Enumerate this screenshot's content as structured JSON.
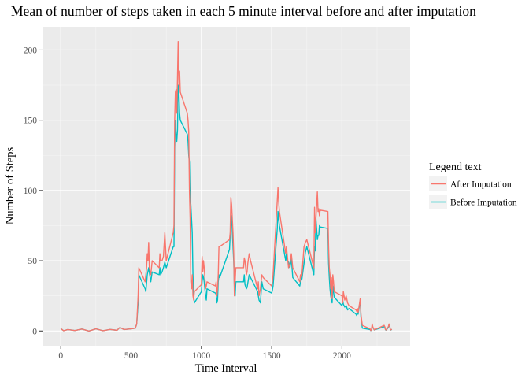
{
  "chart_data": {
    "type": "line",
    "title": "Mean of number of steps taken in each 5 minute interval before and after imputation",
    "xlabel": "Time Interval",
    "ylabel": "Number of Steps",
    "xlim": [
      -130,
      2485
    ],
    "ylim": [
      -10.5,
      216.5
    ],
    "x_ticks": [
      0,
      500,
      1000,
      1500,
      2000
    ],
    "y_ticks": [
      0,
      50,
      100,
      150,
      200
    ],
    "grid": true,
    "legend": {
      "title": "Legend text",
      "position": "right",
      "entries": [
        "After Imputation",
        "Before Imputation"
      ]
    },
    "series": [
      {
        "name": "Before Imputation",
        "color": "#00BFC4",
        "points": [
          [
            0,
            1.7
          ],
          [
            20,
            0.2
          ],
          [
            50,
            1
          ],
          [
            100,
            0.3
          ],
          [
            150,
            1.4
          ],
          [
            200,
            0
          ],
          [
            250,
            1.5
          ],
          [
            300,
            0.2
          ],
          [
            350,
            1.1
          ],
          [
            400,
            0.5
          ],
          [
            420,
            2.5
          ],
          [
            450,
            1
          ],
          [
            500,
            1.5
          ],
          [
            530,
            2
          ],
          [
            540,
            5
          ],
          [
            550,
            20
          ],
          [
            555,
            40
          ],
          [
            600,
            30
          ],
          [
            605,
            28
          ],
          [
            615,
            40
          ],
          [
            625,
            45
          ],
          [
            640,
            35
          ],
          [
            650,
            42
          ],
          [
            700,
            40
          ],
          [
            705,
            45
          ],
          [
            710,
            40
          ],
          [
            720,
            42
          ],
          [
            730,
            45
          ],
          [
            740,
            49
          ],
          [
            750,
            45
          ],
          [
            800,
            60
          ],
          [
            805,
            60
          ],
          [
            810,
            130
          ],
          [
            815,
            150
          ],
          [
            820,
            140
          ],
          [
            825,
            135
          ],
          [
            830,
            143
          ],
          [
            835,
            175
          ],
          [
            840,
            170
          ],
          [
            845,
            155
          ],
          [
            850,
            150
          ],
          [
            900,
            140
          ],
          [
            905,
            135
          ],
          [
            910,
            125
          ],
          [
            915,
            120
          ],
          [
            920,
            95
          ],
          [
            925,
            90
          ],
          [
            930,
            80
          ],
          [
            935,
            70
          ],
          [
            940,
            40
          ],
          [
            945,
            25
          ],
          [
            950,
            20
          ],
          [
            1000,
            28
          ],
          [
            1005,
            35
          ],
          [
            1010,
            40
          ],
          [
            1015,
            38
          ],
          [
            1020,
            35
          ],
          [
            1030,
            25
          ],
          [
            1035,
            22
          ],
          [
            1040,
            30
          ],
          [
            1100,
            27
          ],
          [
            1105,
            26
          ],
          [
            1110,
            20
          ],
          [
            1115,
            22
          ],
          [
            1120,
            35
          ],
          [
            1125,
            40
          ],
          [
            1130,
            38
          ],
          [
            1200,
            58
          ],
          [
            1205,
            68
          ],
          [
            1210,
            75
          ],
          [
            1215,
            82
          ],
          [
            1225,
            60
          ],
          [
            1230,
            50
          ],
          [
            1235,
            30
          ],
          [
            1240,
            25
          ],
          [
            1245,
            35
          ],
          [
            1300,
            35
          ],
          [
            1305,
            40
          ],
          [
            1310,
            33
          ],
          [
            1320,
            30
          ],
          [
            1325,
            31
          ],
          [
            1330,
            34
          ],
          [
            1340,
            40
          ],
          [
            1350,
            38
          ],
          [
            1400,
            28
          ],
          [
            1405,
            25
          ],
          [
            1410,
            22
          ],
          [
            1420,
            20
          ],
          [
            1430,
            35
          ],
          [
            1440,
            30
          ],
          [
            1500,
            27
          ],
          [
            1505,
            29
          ],
          [
            1510,
            32
          ],
          [
            1540,
            73
          ],
          [
            1545,
            85
          ],
          [
            1550,
            80
          ],
          [
            1555,
            75
          ],
          [
            1600,
            50
          ],
          [
            1605,
            55
          ],
          [
            1610,
            50
          ],
          [
            1620,
            49
          ],
          [
            1630,
            45
          ],
          [
            1640,
            52
          ],
          [
            1650,
            38
          ],
          [
            1700,
            32
          ],
          [
            1705,
            35
          ],
          [
            1710,
            36
          ],
          [
            1715,
            37
          ],
          [
            1730,
            48
          ],
          [
            1740,
            56
          ],
          [
            1750,
            60
          ],
          [
            1800,
            40
          ],
          [
            1805,
            60
          ],
          [
            1810,
            57
          ],
          [
            1815,
            80
          ],
          [
            1825,
            65
          ],
          [
            1830,
            68
          ],
          [
            1835,
            68
          ],
          [
            1840,
            75
          ],
          [
            1845,
            74
          ],
          [
            1900,
            73
          ],
          [
            1905,
            48
          ],
          [
            1910,
            38
          ],
          [
            1915,
            30
          ],
          [
            1920,
            25
          ],
          [
            1925,
            22
          ],
          [
            1930,
            20
          ],
          [
            1935,
            32
          ],
          [
            1940,
            28
          ],
          [
            1945,
            24
          ],
          [
            2000,
            18
          ],
          [
            2005,
            22
          ],
          [
            2010,
            19
          ],
          [
            2020,
            17
          ],
          [
            2030,
            18
          ],
          [
            2040,
            15
          ],
          [
            2050,
            16
          ],
          [
            2100,
            12
          ],
          [
            2105,
            11
          ],
          [
            2110,
            13
          ],
          [
            2115,
            12
          ],
          [
            2130,
            22
          ],
          [
            2135,
            10
          ],
          [
            2140,
            6
          ],
          [
            2145,
            2
          ],
          [
            2200,
            1
          ],
          [
            2205,
            0.2
          ],
          [
            2210,
            0.9
          ],
          [
            2215,
            3
          ],
          [
            2220,
            2.5
          ],
          [
            2230,
            0.7
          ],
          [
            2300,
            3
          ],
          [
            2305,
            2.8
          ],
          [
            2310,
            0.8
          ],
          [
            2315,
            0.6
          ],
          [
            2330,
            2.5
          ],
          [
            2335,
            4.5
          ],
          [
            2340,
            3.3
          ],
          [
            2345,
            0.6
          ],
          [
            2355,
            1.1
          ]
        ]
      },
      {
        "name": "After Imputation",
        "color": "#F8766D",
        "points": [
          [
            0,
            1.7
          ],
          [
            20,
            0.2
          ],
          [
            50,
            1
          ],
          [
            100,
            0.3
          ],
          [
            150,
            1.4
          ],
          [
            200,
            0
          ],
          [
            250,
            1.5
          ],
          [
            300,
            0.2
          ],
          [
            350,
            1.1
          ],
          [
            400,
            0.5
          ],
          [
            420,
            2.5
          ],
          [
            450,
            1
          ],
          [
            500,
            1.5
          ],
          [
            530,
            2
          ],
          [
            540,
            5
          ],
          [
            550,
            25
          ],
          [
            555,
            45
          ],
          [
            600,
            35
          ],
          [
            605,
            40
          ],
          [
            610,
            45
          ],
          [
            615,
            55
          ],
          [
            620,
            50
          ],
          [
            625,
            63
          ],
          [
            630,
            45
          ],
          [
            640,
            40
          ],
          [
            650,
            50
          ],
          [
            700,
            45
          ],
          [
            705,
            55
          ],
          [
            710,
            50
          ],
          [
            720,
            50
          ],
          [
            730,
            53
          ],
          [
            740,
            70
          ],
          [
            750,
            50
          ],
          [
            800,
            70
          ],
          [
            805,
            75
          ],
          [
            810,
            150
          ],
          [
            815,
            170
          ],
          [
            820,
            172
          ],
          [
            825,
            155
          ],
          [
            830,
            180
          ],
          [
            835,
            206
          ],
          [
            840,
            175
          ],
          [
            845,
            185
          ],
          [
            850,
            170
          ],
          [
            900,
            155
          ],
          [
            905,
            150
          ],
          [
            910,
            142
          ],
          [
            915,
            100
          ],
          [
            920,
            80
          ],
          [
            925,
            35
          ],
          [
            930,
            30
          ],
          [
            935,
            40
          ],
          [
            940,
            25
          ],
          [
            945,
            22
          ],
          [
            950,
            28
          ],
          [
            1000,
            33
          ],
          [
            1005,
            53
          ],
          [
            1010,
            42
          ],
          [
            1015,
            50
          ],
          [
            1020,
            45
          ],
          [
            1030,
            30
          ],
          [
            1035,
            32
          ],
          [
            1040,
            35
          ],
          [
            1100,
            32
          ],
          [
            1105,
            35
          ],
          [
            1110,
            25
          ],
          [
            1115,
            30
          ],
          [
            1120,
            40
          ],
          [
            1125,
            60
          ],
          [
            1130,
            60
          ],
          [
            1200,
            65
          ],
          [
            1205,
            70
          ],
          [
            1210,
            95
          ],
          [
            1215,
            90
          ],
          [
            1225,
            70
          ],
          [
            1230,
            55
          ],
          [
            1235,
            25
          ],
          [
            1240,
            35
          ],
          [
            1245,
            45
          ],
          [
            1300,
            45
          ],
          [
            1305,
            52
          ],
          [
            1310,
            50
          ],
          [
            1320,
            40
          ],
          [
            1325,
            42
          ],
          [
            1330,
            48
          ],
          [
            1340,
            55
          ],
          [
            1350,
            50
          ],
          [
            1400,
            30
          ],
          [
            1405,
            35
          ],
          [
            1410,
            25
          ],
          [
            1420,
            30
          ],
          [
            1430,
            40
          ],
          [
            1440,
            38
          ],
          [
            1500,
            32
          ],
          [
            1505,
            35
          ],
          [
            1510,
            40
          ],
          [
            1540,
            93
          ],
          [
            1545,
            102
          ],
          [
            1550,
            92
          ],
          [
            1555,
            85
          ],
          [
            1600,
            55
          ],
          [
            1605,
            60
          ],
          [
            1610,
            55
          ],
          [
            1620,
            45
          ],
          [
            1630,
            48
          ],
          [
            1640,
            55
          ],
          [
            1650,
            45
          ],
          [
            1700,
            35
          ],
          [
            1705,
            40
          ],
          [
            1710,
            38
          ],
          [
            1715,
            40
          ],
          [
            1730,
            60
          ],
          [
            1740,
            63
          ],
          [
            1750,
            65
          ],
          [
            1800,
            45
          ],
          [
            1805,
            88
          ],
          [
            1810,
            70
          ],
          [
            1815,
            80
          ],
          [
            1825,
            99
          ],
          [
            1830,
            85
          ],
          [
            1835,
            87
          ],
          [
            1840,
            82
          ],
          [
            1845,
            86
          ],
          [
            1900,
            85
          ],
          [
            1905,
            60
          ],
          [
            1910,
            45
          ],
          [
            1915,
            40
          ],
          [
            1920,
            30
          ],
          [
            1925,
            38
          ],
          [
            1930,
            23
          ],
          [
            1935,
            40
          ],
          [
            1940,
            35
          ],
          [
            1945,
            28
          ],
          [
            2000,
            25
          ],
          [
            2005,
            20
          ],
          [
            2010,
            28
          ],
          [
            2020,
            22
          ],
          [
            2030,
            25
          ],
          [
            2040,
            20
          ],
          [
            2050,
            18
          ],
          [
            2100,
            15
          ],
          [
            2105,
            14
          ],
          [
            2110,
            16
          ],
          [
            2115,
            13
          ],
          [
            2130,
            23
          ],
          [
            2135,
            12
          ],
          [
            2140,
            8
          ],
          [
            2145,
            4
          ],
          [
            2200,
            1.5
          ],
          [
            2205,
            0.3
          ],
          [
            2210,
            1
          ],
          [
            2215,
            5
          ],
          [
            2220,
            2.8
          ],
          [
            2230,
            0.8
          ],
          [
            2300,
            4
          ],
          [
            2305,
            3
          ],
          [
            2310,
            0.9
          ],
          [
            2315,
            0.7
          ],
          [
            2330,
            3
          ],
          [
            2335,
            5
          ],
          [
            2340,
            3.5
          ],
          [
            2345,
            0.7
          ],
          [
            2355,
            1.2
          ]
        ]
      }
    ]
  }
}
